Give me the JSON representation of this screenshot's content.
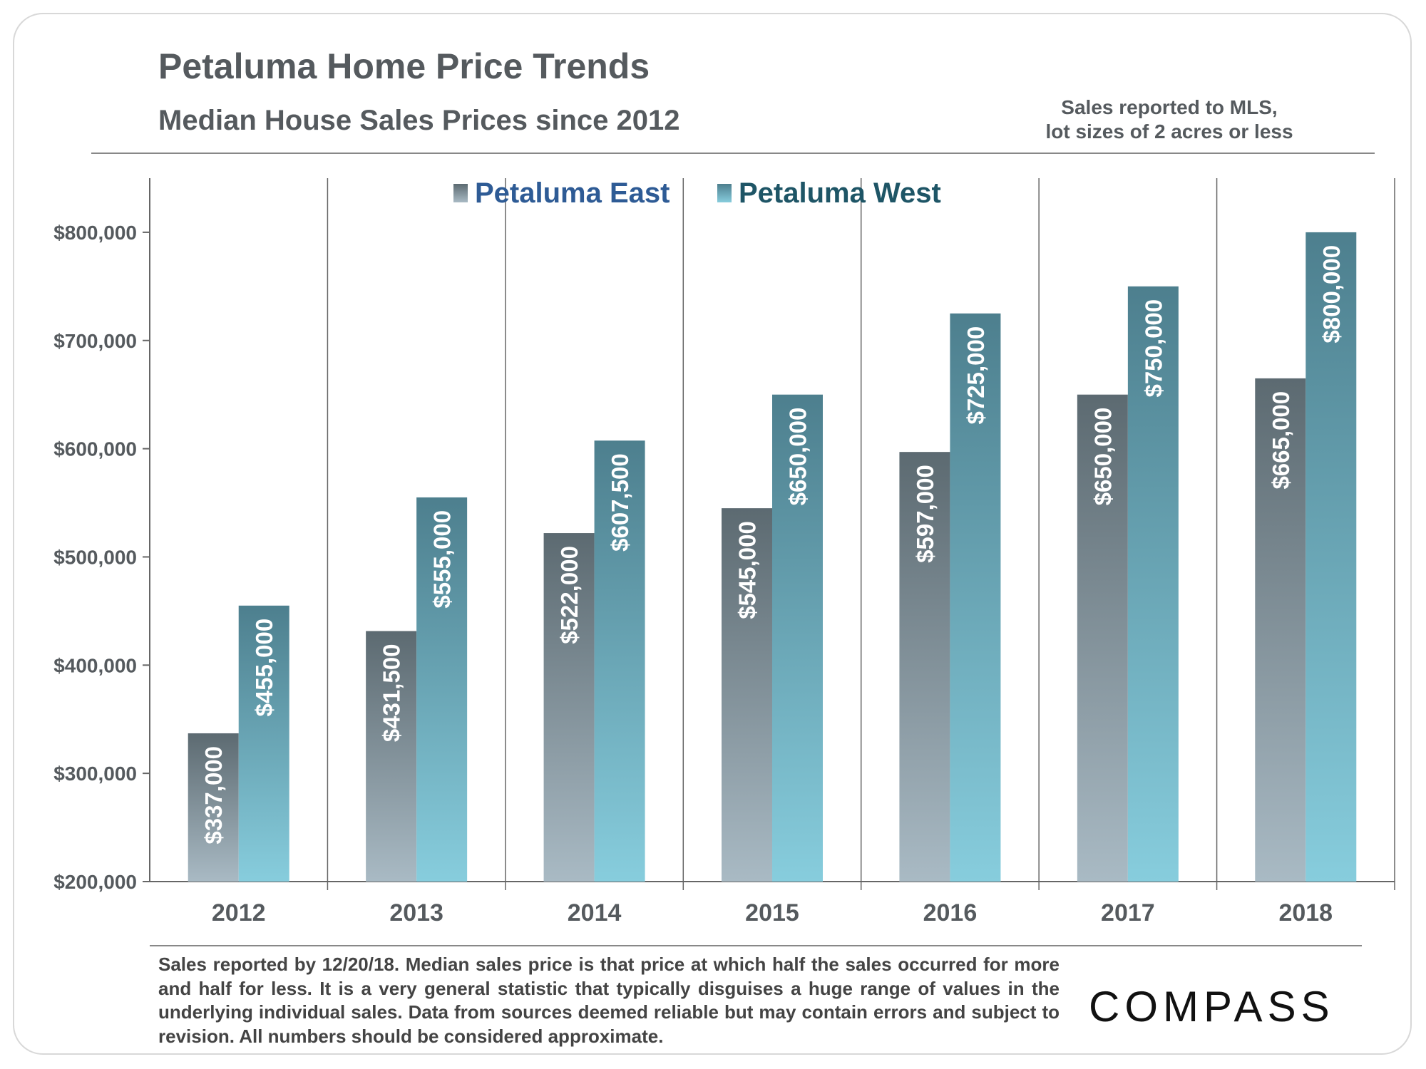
{
  "header": {
    "title": "Petaluma Home Price Trends",
    "subtitle": "Median House Sales Prices since 2012",
    "note_line1": "Sales reported to MLS,",
    "note_line2": "lot sizes of 2 acres or less"
  },
  "footer": {
    "footnote": "Sales reported by 12/20/18. Median sales price is that price at which half the sales occurred for more and half for less. It is a very general statistic that typically disguises a huge range of values in the underlying individual sales. Data from sources deemed reliable but may contain errors and subject to revision. All numbers should be considered approximate.",
    "logo_text": "COMPASS"
  },
  "chart_data": {
    "type": "bar",
    "categories": [
      "2012",
      "2013",
      "2014",
      "2015",
      "2016",
      "2017",
      "2018"
    ],
    "series": [
      {
        "name": "Petaluma East",
        "values": [
          337000,
          431500,
          522000,
          545000,
          597000,
          650000,
          665000
        ],
        "labels": [
          "$337,000",
          "$431,500",
          "$522,000",
          "$545,000",
          "$597,000",
          "$650,000",
          "$665,000"
        ],
        "color_top": "#5c6a71",
        "color_bottom": "#a9bac4",
        "legend_color": "#2e5b95"
      },
      {
        "name": "Petaluma West",
        "values": [
          455000,
          555000,
          607500,
          650000,
          725000,
          750000,
          800000
        ],
        "labels": [
          "$455,000",
          "$555,000",
          "$607,500",
          "$650,000",
          "$725,000",
          "$750,000",
          "$800,000"
        ],
        "color_top": "#4d7f8e",
        "color_bottom": "#87cddd",
        "legend_color": "#1e5566"
      }
    ],
    "yticks": [
      200000,
      300000,
      400000,
      500000,
      600000,
      700000,
      800000
    ],
    "ytick_labels": [
      "$200,000",
      "$300,000",
      "$400,000",
      "$500,000",
      "$600,000",
      "$700,000",
      "$800,000"
    ],
    "ylim": [
      200000,
      850000
    ],
    "xlabel": "",
    "ylabel": "",
    "grid": "vertical separators between years",
    "legend_position": "top-center",
    "data_labels": "rotated vertical inside bars"
  }
}
